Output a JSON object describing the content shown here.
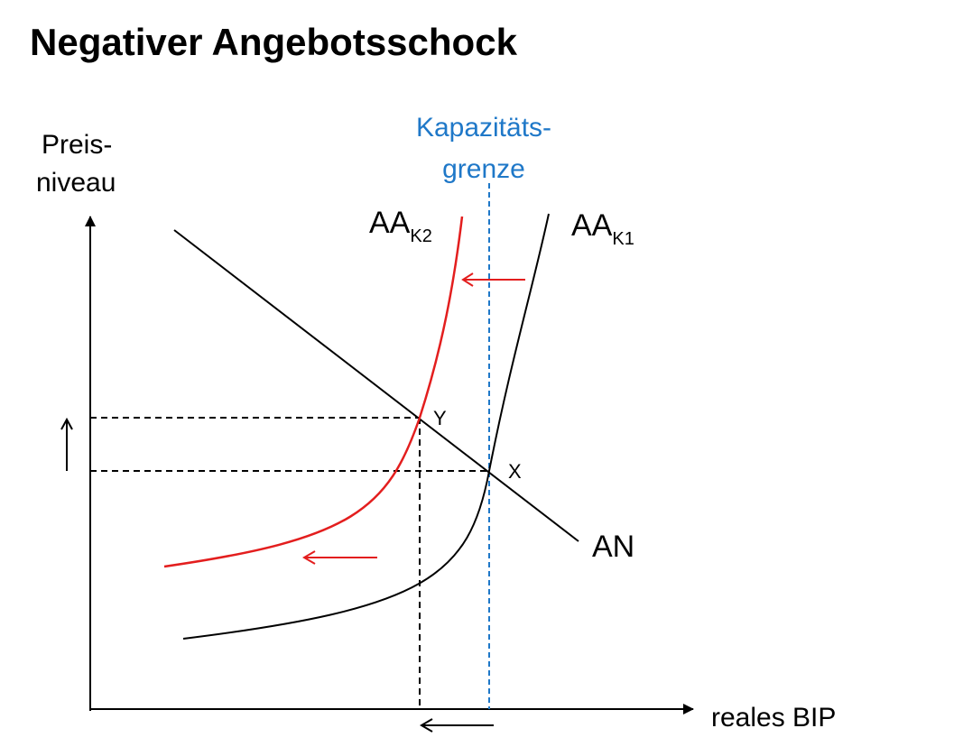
{
  "title": "Negativer Angebotsschock",
  "y_axis_label": [
    "Preis-",
    "niveau"
  ],
  "x_axis_label": "reales BIP",
  "capacity_label": [
    "Kapazitäts-",
    "grenze"
  ],
  "curve_aa_k2": {
    "base": "AA",
    "sub": "K2"
  },
  "curve_aa_k1": {
    "base": "AA",
    "sub": "K1"
  },
  "curve_an": "AN",
  "point_y": "Y",
  "point_x": "X",
  "colors": {
    "ink": "#000000",
    "shift": "#e31e1e",
    "capacity": "#1f78c8"
  }
}
